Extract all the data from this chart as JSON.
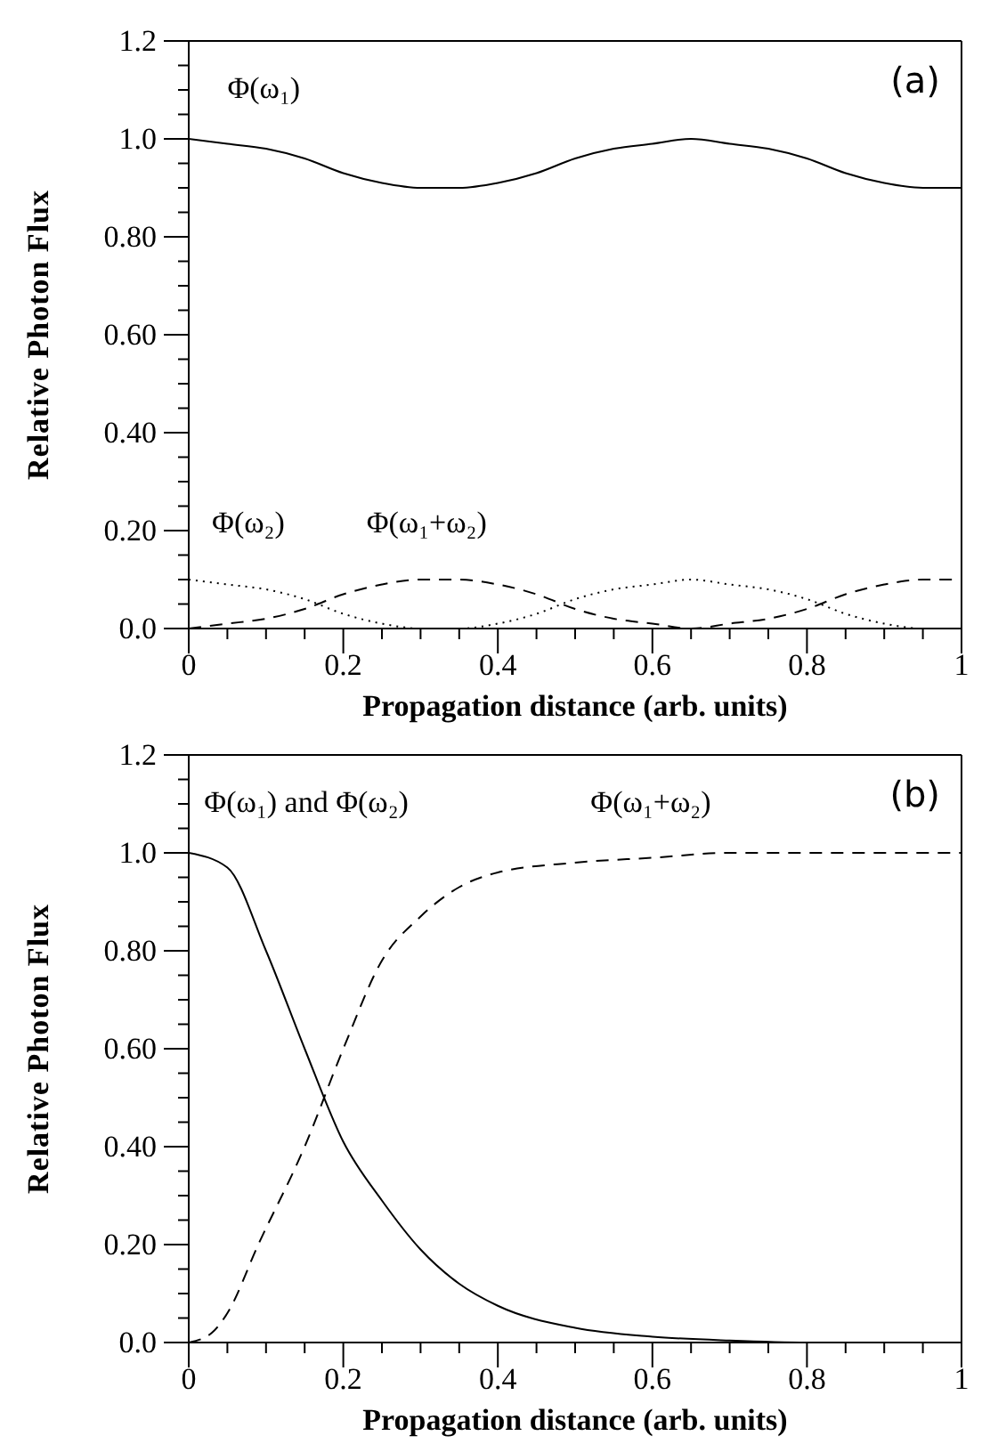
{
  "chart_data": [
    {
      "type": "line",
      "xlabel": "Propagation distance (arb. units)",
      "ylabel": "Relative Photon Flux",
      "annotations": [
        "(a)"
      ],
      "x": [
        0,
        0.05,
        0.1,
        0.15,
        0.2,
        0.25,
        0.3,
        0.325,
        0.35,
        0.4,
        0.45,
        0.5,
        0.55,
        0.6,
        0.65,
        0.7,
        0.75,
        0.8,
        0.85,
        0.9,
        0.95,
        1.0
      ],
      "series": [
        {
          "name": "Φ(ω₁)",
          "color": "#000000",
          "line_style": "solid",
          "values": [
            1.0,
            0.99,
            0.98,
            0.96,
            0.93,
            0.91,
            0.9,
            0.9,
            0.9,
            0.91,
            0.93,
            0.96,
            0.98,
            0.99,
            1.0,
            0.99,
            0.98,
            0.96,
            0.93,
            0.91,
            0.9,
            0.9
          ]
        },
        {
          "name": "Φ(ω₂)",
          "color": "#000000",
          "line_style": "dotted",
          "values": [
            0.1,
            0.09,
            0.08,
            0.06,
            0.03,
            0.01,
            0.0,
            0.0,
            0.0,
            0.01,
            0.03,
            0.06,
            0.08,
            0.09,
            0.1,
            0.09,
            0.08,
            0.06,
            0.03,
            0.01,
            0.0,
            0.0
          ]
        },
        {
          "name": "Φ(ω₁+ω₂)",
          "color": "#000000",
          "line_style": "dashed",
          "values": [
            0.0,
            0.01,
            0.02,
            0.04,
            0.07,
            0.09,
            0.1,
            0.1,
            0.1,
            0.09,
            0.07,
            0.04,
            0.02,
            0.01,
            0.0,
            0.01,
            0.02,
            0.04,
            0.07,
            0.09,
            0.1,
            0.1
          ]
        }
      ],
      "xlim": [
        0,
        1
      ],
      "ylim": [
        0,
        1.2
      ],
      "xticks": [
        0,
        {
          "value": 0.05,
          "label": null
        },
        {
          "value": 0.1,
          "label": null
        },
        {
          "value": 0.15,
          "label": null
        },
        0.2,
        {
          "value": 0.25,
          "label": null
        },
        {
          "value": 0.3,
          "label": null
        },
        {
          "value": 0.35,
          "label": null
        },
        0.4,
        {
          "value": 0.45,
          "label": null
        },
        {
          "value": 0.5,
          "label": null
        },
        {
          "value": 0.55,
          "label": null
        },
        0.6,
        {
          "value": 0.65,
          "label": null
        },
        {
          "value": 0.7,
          "label": null
        },
        {
          "value": 0.75,
          "label": null
        },
        0.8,
        {
          "value": 0.85,
          "label": null
        },
        {
          "value": 0.9,
          "label": null
        },
        {
          "value": 0.95,
          "label": null
        },
        1
      ],
      "yticks": [
        {
          "value": 0,
          "label": "0.0"
        },
        {
          "value": 0.05,
          "label": null
        },
        {
          "value": 0.1,
          "label": null
        },
        {
          "value": 0.15,
          "label": null
        },
        {
          "value": 0.2,
          "label": "0.20"
        },
        {
          "value": 0.25,
          "label": null
        },
        {
          "value": 0.3,
          "label": null
        },
        {
          "value": 0.35,
          "label": null
        },
        {
          "value": 0.4,
          "label": "0.40"
        },
        {
          "value": 0.45,
          "label": null
        },
        {
          "value": 0.5,
          "label": null
        },
        {
          "value": 0.55,
          "label": null
        },
        {
          "value": 0.6,
          "label": "0.60"
        },
        {
          "value": 0.65,
          "label": null
        },
        {
          "value": 0.7,
          "label": null
        },
        {
          "value": 0.75,
          "label": null
        },
        {
          "value": 0.8,
          "label": "0.80"
        },
        {
          "value": 0.85,
          "label": null
        },
        {
          "value": 0.9,
          "label": null
        },
        {
          "value": 0.95,
          "label": null
        },
        {
          "value": 1,
          "label": "1.0"
        },
        {
          "value": 1.05,
          "label": null
        },
        {
          "value": 1.1,
          "label": null
        },
        {
          "value": 1.15,
          "label": null
        },
        1.2
      ],
      "grid": false,
      "legend": false,
      "marker": "none"
    },
    {
      "type": "line",
      "xlabel": "Propagation distance (arb. units)",
      "ylabel": "Relative Photon Flux",
      "annotations": [
        "(b)"
      ],
      "series": [
        {
          "name": "Φ(ω₁) and Φ(ω₂)",
          "color": "#000000",
          "line_style": "solid",
          "x": [
            0,
            0.05,
            0.1,
            0.15,
            0.2,
            0.25,
            0.3,
            0.35,
            0.4,
            0.5,
            0.6,
            0.7,
            0.8,
            0.9,
            1.0
          ],
          "values": [
            1.0,
            0.97,
            0.8,
            0.6,
            0.41,
            0.29,
            0.19,
            0.12,
            0.075,
            0.03,
            0.012,
            0.004,
            0.0,
            0.0,
            0.0
          ]
        },
        {
          "name": "Φ(ω₁+ω₂)",
          "color": "#000000",
          "line_style": "dashed",
          "x": [
            0,
            0.03,
            0.05,
            0.09,
            0.15,
            0.2,
            0.25,
            0.3,
            0.35,
            0.4,
            0.5,
            0.6,
            0.7,
            0.8,
            0.9,
            1.0
          ],
          "values": [
            0.0,
            0.02,
            0.06,
            0.2,
            0.4,
            0.6,
            0.78,
            0.87,
            0.93,
            0.96,
            0.98,
            0.99,
            1.0,
            1.0,
            1.0,
            1.0
          ]
        }
      ],
      "xlim": [
        0,
        1
      ],
      "ylim": [
        0,
        1.2
      ],
      "xticks": [
        0,
        {
          "value": 0.05,
          "label": null
        },
        {
          "value": 0.1,
          "label": null
        },
        {
          "value": 0.15,
          "label": null
        },
        0.2,
        {
          "value": 0.25,
          "label": null
        },
        {
          "value": 0.3,
          "label": null
        },
        {
          "value": 0.35,
          "label": null
        },
        0.4,
        {
          "value": 0.45,
          "label": null
        },
        {
          "value": 0.5,
          "label": null
        },
        {
          "value": 0.55,
          "label": null
        },
        0.6,
        {
          "value": 0.65,
          "label": null
        },
        {
          "value": 0.7,
          "label": null
        },
        {
          "value": 0.75,
          "label": null
        },
        0.8,
        {
          "value": 0.85,
          "label": null
        },
        {
          "value": 0.9,
          "label": null
        },
        {
          "value": 0.95,
          "label": null
        },
        1
      ],
      "yticks": [
        {
          "value": 0,
          "label": "0.0"
        },
        {
          "value": 0.05,
          "label": null
        },
        {
          "value": 0.1,
          "label": null
        },
        {
          "value": 0.15,
          "label": null
        },
        {
          "value": 0.2,
          "label": "0.20"
        },
        {
          "value": 0.25,
          "label": null
        },
        {
          "value": 0.3,
          "label": null
        },
        {
          "value": 0.35,
          "label": null
        },
        {
          "value": 0.4,
          "label": "0.40"
        },
        {
          "value": 0.45,
          "label": null
        },
        {
          "value": 0.5,
          "label": null
        },
        {
          "value": 0.55,
          "label": null
        },
        {
          "value": 0.6,
          "label": "0.60"
        },
        {
          "value": 0.65,
          "label": null
        },
        {
          "value": 0.7,
          "label": null
        },
        {
          "value": 0.75,
          "label": null
        },
        {
          "value": 0.8,
          "label": "0.80"
        },
        {
          "value": 0.85,
          "label": null
        },
        {
          "value": 0.9,
          "label": null
        },
        {
          "value": 0.95,
          "label": null
        },
        {
          "value": 1,
          "label": "1.0"
        },
        {
          "value": 1.05,
          "label": null
        },
        {
          "value": 1.1,
          "label": null
        },
        {
          "value": 1.15,
          "label": null
        },
        1.2
      ],
      "grid": false,
      "legend": false,
      "marker": "none"
    }
  ]
}
